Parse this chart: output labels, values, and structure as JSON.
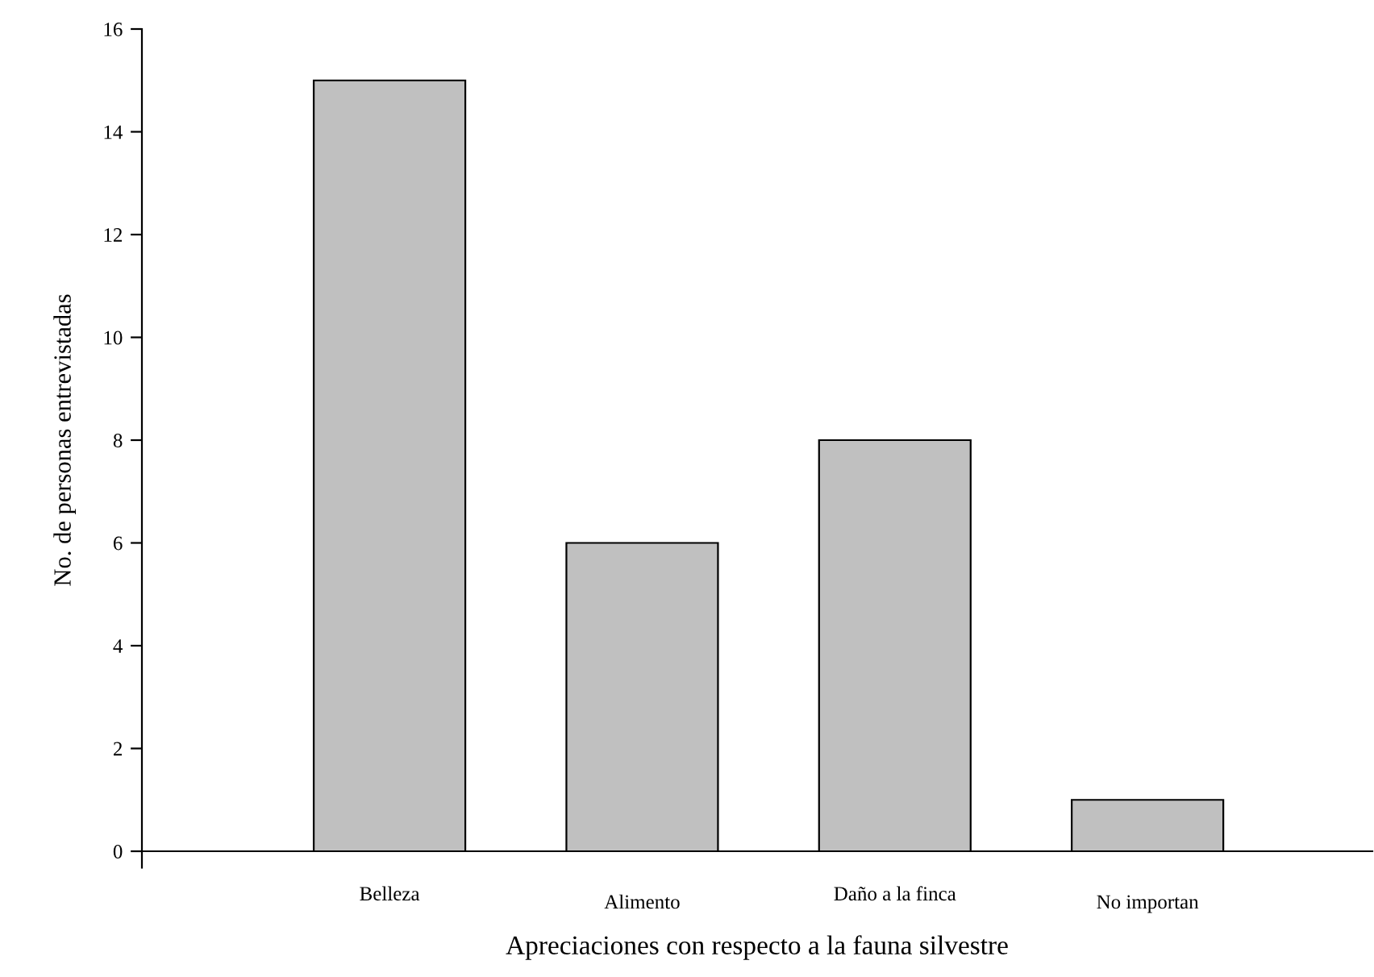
{
  "chart_data": {
    "type": "bar",
    "xlabel": "Apreciaciones con respecto a la fauna silvestre",
    "ylabel": "No. de personas entrevistadas",
    "categories": [
      "Belleza",
      "Alimento",
      "Daño a la finca",
      "No importan"
    ],
    "values": [
      15,
      6,
      8,
      1
    ],
    "color": "#c0c0c0",
    "ylim": [
      0,
      16
    ],
    "yticks": [
      0,
      2,
      4,
      6,
      8,
      10,
      12,
      14,
      16
    ],
    "grid": false
  }
}
